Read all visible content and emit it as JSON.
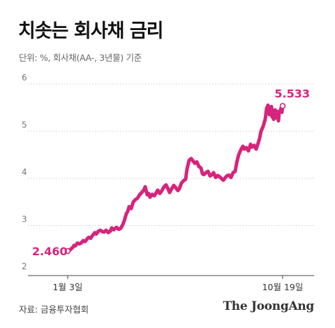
{
  "header": {
    "title": "치솟는 회사채 금리",
    "subtitle": "단위: %, 회사채(AA-, 3년물) 기준"
  },
  "footer": {
    "source": "자료: 금융투자협회",
    "brand": "The JoongAng"
  },
  "colors": {
    "series": "#d6247c",
    "grid": "#cfcfcf",
    "axis": "#444444",
    "tick_label": "#777777"
  },
  "chart_data": {
    "type": "line",
    "title": "치솟는 회사채 금리",
    "subtitle": "단위: %, 회사채(AA-, 3년물) 기준",
    "xlabel": "",
    "ylabel": "",
    "ylim": [
      2,
      6
    ],
    "yticks": [
      2,
      3,
      4,
      5,
      6
    ],
    "grid": "horizontal dotted",
    "x_ticks": [
      "1월 3일",
      "10월 19일"
    ],
    "annotations": [
      {
        "label": "2.460",
        "at": "start"
      },
      {
        "label": "5.533",
        "at": "end"
      }
    ],
    "series": [
      {
        "x": [
          0,
          3,
          6,
          8,
          9,
          11,
          14,
          17,
          20,
          22,
          25,
          28,
          30,
          33,
          36,
          39,
          41,
          44,
          47,
          50,
          52,
          55,
          58,
          61,
          63,
          66,
          68,
          70,
          73,
          76,
          79,
          81,
          84,
          86,
          88,
          91,
          94,
          97,
          100,
          103,
          106,
          109,
          111,
          114,
          116,
          118,
          121,
          124,
          127,
          129,
          132,
          135,
          138,
          141,
          143,
          146,
          149,
          152,
          155,
          158,
          160,
          163,
          166,
          169,
          171,
          174,
          177,
          180,
          182,
          185,
          188,
          191,
          193,
          195,
          198,
          201,
          204,
          207,
          209,
          212,
          215,
          218,
          220,
          223,
          226,
          228,
          231,
          234,
          237,
          240,
          242,
          245,
          248,
          251,
          253,
          256,
          259,
          262,
          264,
          267,
          270,
          273,
          275,
          277,
          280,
          283,
          285,
          287,
          289,
          291,
          292,
          293,
          294,
          295,
          296,
          297,
          298,
          299,
          300,
          302,
          303,
          305,
          306,
          307,
          308
        ],
        "y": [
          2.46,
          2.48,
          2.52,
          2.55,
          2.58,
          2.57,
          2.63,
          2.61,
          2.64,
          2.68,
          2.66,
          2.72,
          2.75,
          2.73,
          2.8,
          2.85,
          2.82,
          2.88,
          2.9,
          2.87,
          2.86,
          2.9,
          2.85,
          2.88,
          2.95,
          2.91,
          2.94,
          2.96,
          2.92,
          2.94,
          3.02,
          3.1,
          3.25,
          3.3,
          3.4,
          3.36,
          3.5,
          3.55,
          3.58,
          3.65,
          3.7,
          3.75,
          3.82,
          3.65,
          3.68,
          3.6,
          3.66,
          3.63,
          3.7,
          3.75,
          3.68,
          3.74,
          3.82,
          3.86,
          3.8,
          3.7,
          3.78,
          3.85,
          3.8,
          3.74,
          3.78,
          3.9,
          3.95,
          3.98,
          4.2,
          4.38,
          4.42,
          4.36,
          4.32,
          4.35,
          4.25,
          4.22,
          4.1,
          4.08,
          4.12,
          4.15,
          4.05,
          4.08,
          4.12,
          4.02,
          4.06,
          4.03,
          4.0,
          3.96,
          4.02,
          4.05,
          4.07,
          4.02,
          4.12,
          4.15,
          4.32,
          4.5,
          4.6,
          4.68,
          4.62,
          4.65,
          4.58,
          4.72,
          4.66,
          4.7,
          4.62,
          4.75,
          4.85,
          5.0,
          5.1,
          5.25,
          5.48,
          5.55,
          5.35,
          5.45,
          5.52,
          5.3,
          5.4,
          5.25,
          5.38,
          5.45,
          5.28,
          5.35,
          5.42,
          5.22,
          5.38,
          5.45,
          5.5,
          5.4,
          5.533
        ]
      }
    ]
  }
}
